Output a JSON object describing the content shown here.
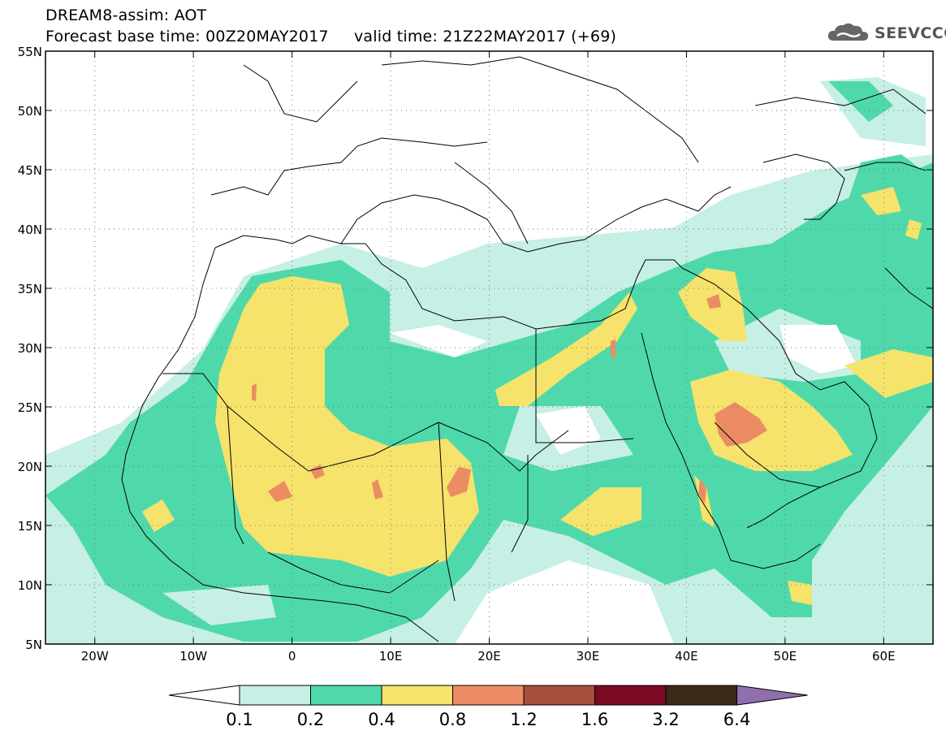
{
  "title": {
    "line1": "DREAM8-assim: AOT",
    "line2": "Forecast base time: 00Z20MAY2017     valid time: 21Z22MAY2017 (+69)"
  },
  "logo": {
    "text": "SEEVCCC",
    "icon": "cloud-icon"
  },
  "map": {
    "lon_range": [
      -25,
      65
    ],
    "lat_range": [
      5,
      55
    ],
    "lat_ticks": [
      {
        "value": 55,
        "label": "55N"
      },
      {
        "value": 50,
        "label": "50N"
      },
      {
        "value": 45,
        "label": "45N"
      },
      {
        "value": 40,
        "label": "40N"
      },
      {
        "value": 35,
        "label": "35N"
      },
      {
        "value": 30,
        "label": "30N"
      },
      {
        "value": 25,
        "label": "25N"
      },
      {
        "value": 20,
        "label": "20N"
      },
      {
        "value": 15,
        "label": "15N"
      },
      {
        "value": 10,
        "label": "10N"
      },
      {
        "value": 5,
        "label": "5N"
      }
    ],
    "lon_ticks": [
      {
        "value": -20,
        "label": "20W"
      },
      {
        "value": -10,
        "label": "10W"
      },
      {
        "value": 0,
        "label": "0"
      },
      {
        "value": 10,
        "label": "10E"
      },
      {
        "value": 20,
        "label": "20E"
      },
      {
        "value": 30,
        "label": "30E"
      },
      {
        "value": 40,
        "label": "40E"
      },
      {
        "value": 50,
        "label": "50E"
      },
      {
        "value": 60,
        "label": "60E"
      }
    ],
    "grid": "dotted"
  },
  "legend": {
    "labels": [
      "0.1",
      "0.2",
      "0.4",
      "0.8",
      "1.2",
      "1.6",
      "3.2",
      "6.4"
    ],
    "colors": [
      "#ffffff",
      "#c6efe6",
      "#4fd9aa",
      "#f5e36b",
      "#eb8c64",
      "#a84e3c",
      "#7b0a25",
      "#3c2a18",
      "#8f6fae"
    ]
  }
}
